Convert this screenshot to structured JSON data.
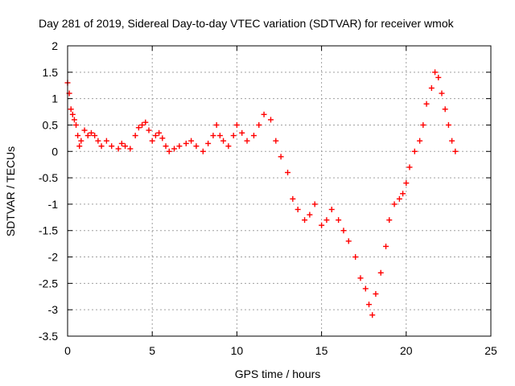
{
  "chart_data": {
    "type": "scatter",
    "title": "Day 281 of 2019, Sidereal Day-to-day VTEC variation (SDTVAR) for receiver wmok",
    "xlabel": "GPS time / hours",
    "ylabel": "SDTVAR / TECUs",
    "xlim": [
      0,
      25
    ],
    "ylim": [
      -3.5,
      2
    ],
    "xticks": [
      "0",
      "5",
      "10",
      "15",
      "20",
      "25"
    ],
    "yticks": [
      "2",
      "1.5",
      "1",
      "0.5",
      "0",
      "-0.5",
      "-1",
      "-1.5",
      "-2",
      "-2.5",
      "-3",
      "-3.5"
    ],
    "grid": true,
    "marker": "+",
    "color": "#ff0000",
    "series": [
      {
        "name": "SDTVAR",
        "x": [
          0.0,
          0.1,
          0.2,
          0.3,
          0.4,
          0.5,
          0.6,
          0.7,
          0.8,
          1.0,
          1.2,
          1.4,
          1.6,
          1.8,
          2.0,
          2.3,
          2.6,
          3.0,
          3.2,
          3.4,
          3.7,
          4.0,
          4.2,
          4.4,
          4.6,
          4.8,
          5.0,
          5.2,
          5.4,
          5.6,
          5.8,
          6.0,
          6.3,
          6.6,
          7.0,
          7.3,
          7.6,
          8.0,
          8.3,
          8.6,
          8.8,
          9.0,
          9.2,
          9.5,
          9.8,
          10.0,
          10.3,
          10.6,
          11.0,
          11.3,
          11.6,
          12.0,
          12.3,
          12.6,
          13.0,
          13.3,
          13.6,
          14.0,
          14.3,
          14.6,
          15.0,
          15.3,
          15.6,
          16.0,
          16.3,
          16.6,
          17.0,
          17.3,
          17.6,
          17.8,
          18.0,
          18.2,
          18.5,
          18.8,
          19.0,
          19.3,
          19.6,
          19.8,
          20.0,
          20.2,
          20.5,
          20.8,
          21.0,
          21.2,
          21.5,
          21.7,
          21.9,
          22.1,
          22.3,
          22.5,
          22.7,
          22.9
        ],
        "y": [
          1.3,
          1.1,
          0.8,
          0.7,
          0.6,
          0.5,
          0.3,
          0.1,
          0.2,
          0.4,
          0.3,
          0.35,
          0.3,
          0.2,
          0.1,
          0.2,
          0.1,
          0.05,
          0.15,
          0.1,
          0.05,
          0.3,
          0.45,
          0.5,
          0.55,
          0.4,
          0.2,
          0.3,
          0.35,
          0.25,
          0.1,
          0.0,
          0.05,
          0.1,
          0.15,
          0.2,
          0.1,
          0.0,
          0.15,
          0.3,
          0.5,
          0.3,
          0.2,
          0.1,
          0.3,
          0.5,
          0.35,
          0.2,
          0.3,
          0.5,
          0.7,
          0.6,
          0.2,
          -0.1,
          -0.4,
          -0.9,
          -1.1,
          -1.3,
          -1.2,
          -1.0,
          -1.4,
          -1.3,
          -1.1,
          -1.3,
          -1.5,
          -1.7,
          -2.0,
          -2.4,
          -2.6,
          -2.9,
          -3.1,
          -2.7,
          -2.3,
          -1.8,
          -1.3,
          -1.0,
          -0.9,
          -0.8,
          -0.6,
          -0.3,
          0.0,
          0.2,
          0.5,
          0.9,
          1.2,
          1.5,
          1.4,
          1.1,
          0.8,
          0.5,
          0.2,
          0.0
        ]
      }
    ]
  }
}
